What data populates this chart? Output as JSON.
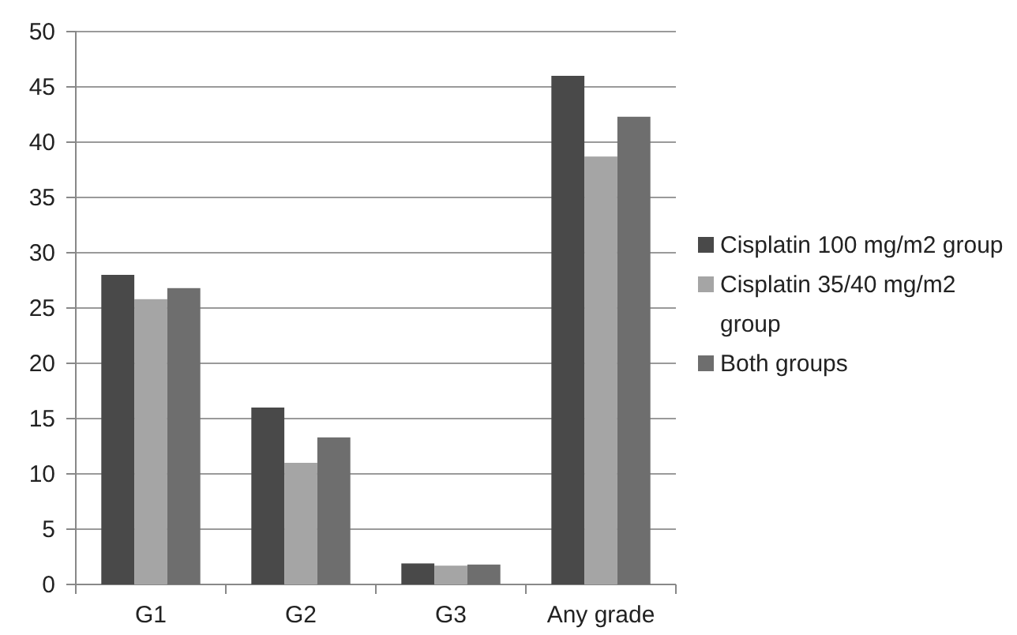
{
  "chart_data": {
    "type": "bar",
    "categories": [
      "G1",
      "G2",
      "G3",
      "Any grade"
    ],
    "series": [
      {
        "name": "Cisplatin 100 mg/m2 group",
        "color": "#494949",
        "values": [
          28,
          16,
          1.9,
          46
        ]
      },
      {
        "name": "Cisplatin 35/40 mg/m2 group",
        "color": "#a5a5a5",
        "values": [
          25.8,
          11,
          1.7,
          38.7
        ]
      },
      {
        "name": "Both groups",
        "color": "#6e6e6e",
        "values": [
          26.8,
          13.3,
          1.8,
          42.3
        ]
      }
    ],
    "ylim": [
      0,
      50
    ],
    "yticks": [
      0,
      5,
      10,
      15,
      20,
      25,
      30,
      35,
      40,
      45,
      50
    ],
    "grid": "y",
    "legend": "right"
  }
}
